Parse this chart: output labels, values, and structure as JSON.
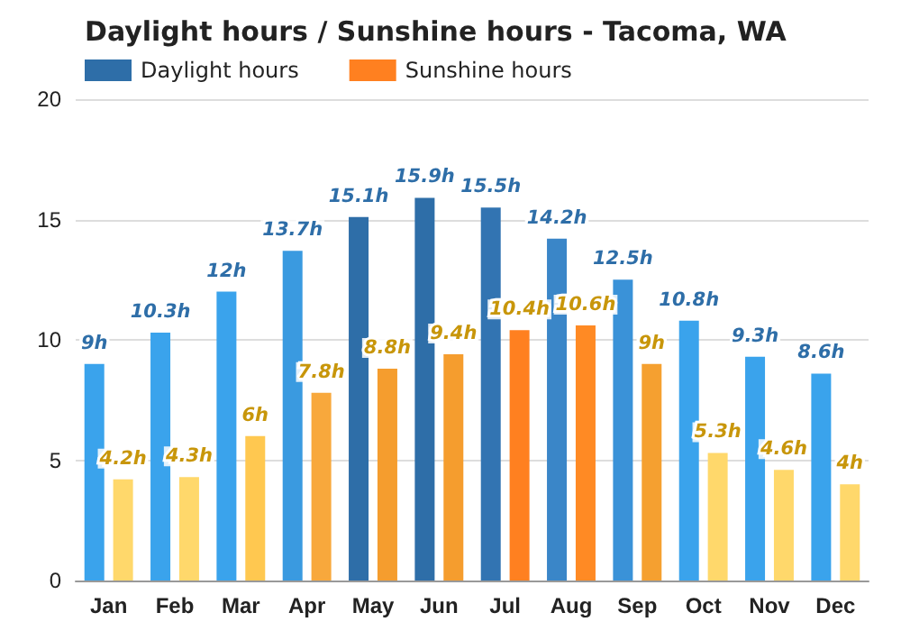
{
  "chart_data": {
    "type": "bar",
    "title": "Daylight hours / Sunshine hours - Tacoma, WA",
    "categories": [
      "Jan",
      "Feb",
      "Mar",
      "Apr",
      "May",
      "Jun",
      "Jul",
      "Aug",
      "Sep",
      "Oct",
      "Nov",
      "Dec"
    ],
    "series": [
      {
        "name": "Daylight hours",
        "color": "#2e6ea8",
        "colors": [
          "#3aa3ec",
          "#3aa3ec",
          "#3aa3ec",
          "#3a9ae0",
          "#2e6ea8",
          "#2e6ea8",
          "#3274b2",
          "#3a86c8",
          "#3a92d8",
          "#3aa3ec",
          "#3aa3ec",
          "#3aa3ec"
        ],
        "values": [
          9,
          10.3,
          12,
          13.7,
          15.1,
          15.9,
          15.5,
          14.2,
          12.5,
          10.8,
          9.3,
          8.6
        ],
        "value_labels": [
          "9h",
          "10.3h",
          "12h",
          "13.7h",
          "15.1h",
          "15.9h",
          "15.5h",
          "14.2h",
          "12.5h",
          "10.8h",
          "9.3h",
          "8.6h"
        ]
      },
      {
        "name": "Sunshine hours",
        "color": "#ff8020",
        "colors": [
          "#ffd86b",
          "#ffd86b",
          "#ffc850",
          "#f8a83c",
          "#f59d2e",
          "#f59d2e",
          "#ff8020",
          "#ff8a24",
          "#f5a030",
          "#ffd86b",
          "#ffd86b",
          "#ffd86b"
        ],
        "values": [
          4.2,
          4.3,
          6,
          7.8,
          8.8,
          9.4,
          10.4,
          10.6,
          9,
          5.3,
          4.6,
          4
        ],
        "value_labels": [
          "4.2h",
          "4.3h",
          "6h",
          "7.8h",
          "8.8h",
          "9.4h",
          "10.4h",
          "10.6h",
          "9h",
          "5.3h",
          "4.6h",
          "4h"
        ]
      }
    ],
    "ylim": [
      0,
      20
    ],
    "yticks": [
      0,
      5,
      10,
      15,
      20
    ],
    "grid": "y",
    "legend": "top left"
  }
}
